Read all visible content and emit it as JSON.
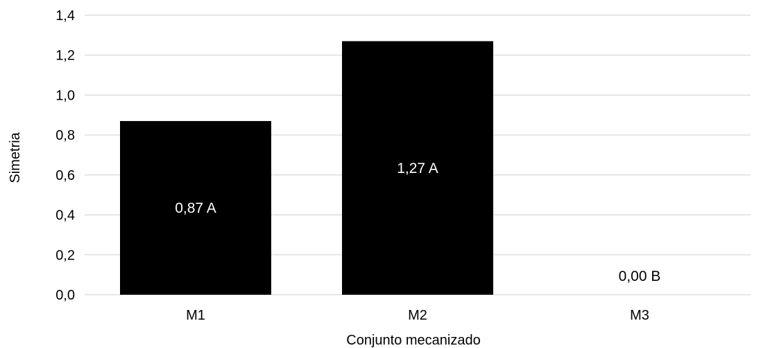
{
  "chart_data": {
    "type": "bar",
    "categories": [
      "M1",
      "M2",
      "M3"
    ],
    "values": [
      0.87,
      1.27,
      0.0
    ],
    "data_labels": [
      "0,87 A",
      "1,27 A",
      "0,00 B"
    ],
    "xlabel": "Conjunto mecanizado",
    "ylabel": "Simetria",
    "ylim": [
      0,
      1.4
    ],
    "y_ticks": [
      "0,0",
      "0,2",
      "0,4",
      "0,6",
      "0,8",
      "1,0",
      "1,2",
      "1,4"
    ],
    "grid": true,
    "legend": "none",
    "colors": {
      "bar": "#000000",
      "grid": "#d9d9d9",
      "label_inside": "#ffffff",
      "label_outside": "#000000"
    }
  }
}
